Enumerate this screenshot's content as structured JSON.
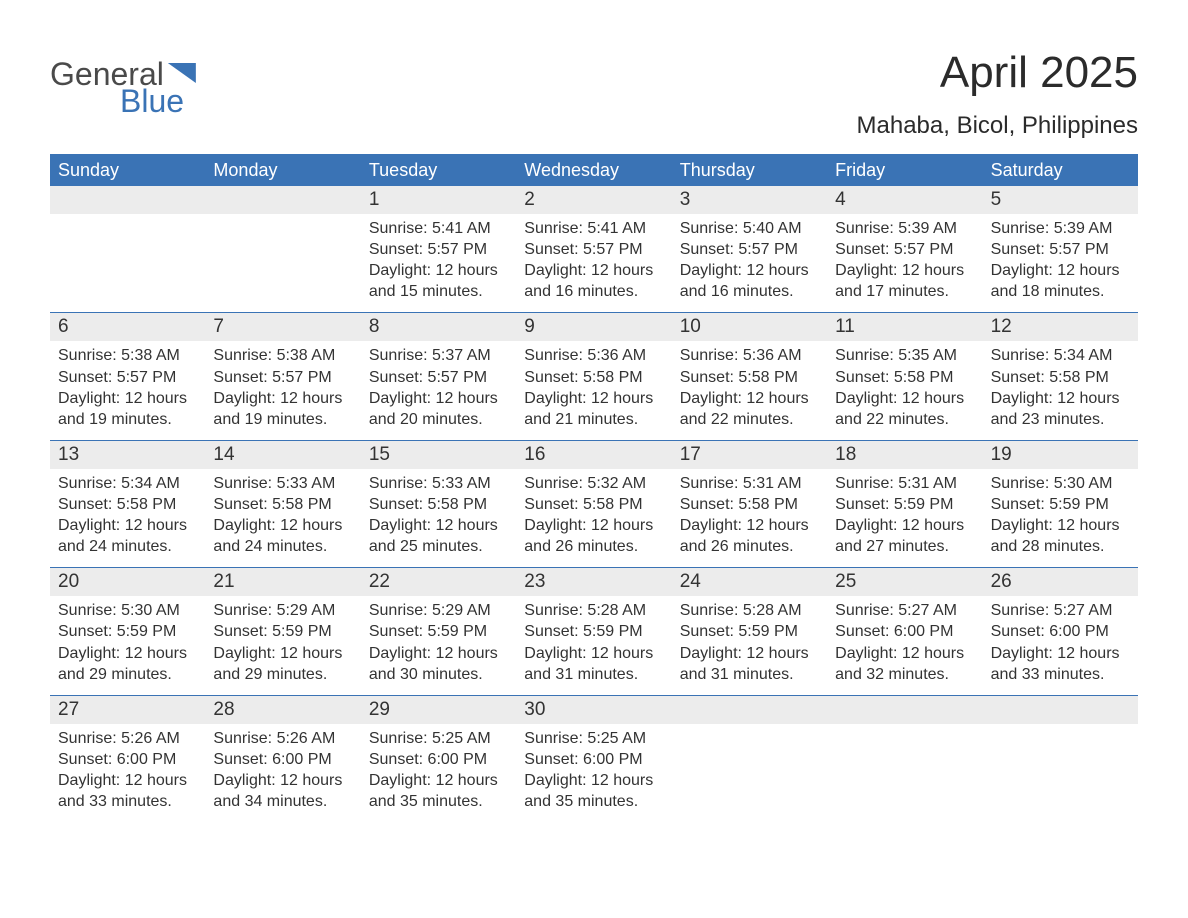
{
  "brand": {
    "word1": "General",
    "word2": "Blue"
  },
  "title": "April 2025",
  "location": "Mahaba, Bicol, Philippines",
  "header_bg": "#3a73b5",
  "header_fg": "#ffffff",
  "daynum_bg": "#ececec",
  "week_border": "#3a73b5",
  "text_color": "#333333",
  "day_names": [
    "Sunday",
    "Monday",
    "Tuesday",
    "Wednesday",
    "Thursday",
    "Friday",
    "Saturday"
  ],
  "weeks": [
    [
      {
        "n": "",
        "sunrise": "",
        "sunset": "",
        "daylight": ""
      },
      {
        "n": "",
        "sunrise": "",
        "sunset": "",
        "daylight": ""
      },
      {
        "n": "1",
        "sunrise": "Sunrise: 5:41 AM",
        "sunset": "Sunset: 5:57 PM",
        "daylight": "Daylight: 12 hours and 15 minutes."
      },
      {
        "n": "2",
        "sunrise": "Sunrise: 5:41 AM",
        "sunset": "Sunset: 5:57 PM",
        "daylight": "Daylight: 12 hours and 16 minutes."
      },
      {
        "n": "3",
        "sunrise": "Sunrise: 5:40 AM",
        "sunset": "Sunset: 5:57 PM",
        "daylight": "Daylight: 12 hours and 16 minutes."
      },
      {
        "n": "4",
        "sunrise": "Sunrise: 5:39 AM",
        "sunset": "Sunset: 5:57 PM",
        "daylight": "Daylight: 12 hours and 17 minutes."
      },
      {
        "n": "5",
        "sunrise": "Sunrise: 5:39 AM",
        "sunset": "Sunset: 5:57 PM",
        "daylight": "Daylight: 12 hours and 18 minutes."
      }
    ],
    [
      {
        "n": "6",
        "sunrise": "Sunrise: 5:38 AM",
        "sunset": "Sunset: 5:57 PM",
        "daylight": "Daylight: 12 hours and 19 minutes."
      },
      {
        "n": "7",
        "sunrise": "Sunrise: 5:38 AM",
        "sunset": "Sunset: 5:57 PM",
        "daylight": "Daylight: 12 hours and 19 minutes."
      },
      {
        "n": "8",
        "sunrise": "Sunrise: 5:37 AM",
        "sunset": "Sunset: 5:57 PM",
        "daylight": "Daylight: 12 hours and 20 minutes."
      },
      {
        "n": "9",
        "sunrise": "Sunrise: 5:36 AM",
        "sunset": "Sunset: 5:58 PM",
        "daylight": "Daylight: 12 hours and 21 minutes."
      },
      {
        "n": "10",
        "sunrise": "Sunrise: 5:36 AM",
        "sunset": "Sunset: 5:58 PM",
        "daylight": "Daylight: 12 hours and 22 minutes."
      },
      {
        "n": "11",
        "sunrise": "Sunrise: 5:35 AM",
        "sunset": "Sunset: 5:58 PM",
        "daylight": "Daylight: 12 hours and 22 minutes."
      },
      {
        "n": "12",
        "sunrise": "Sunrise: 5:34 AM",
        "sunset": "Sunset: 5:58 PM",
        "daylight": "Daylight: 12 hours and 23 minutes."
      }
    ],
    [
      {
        "n": "13",
        "sunrise": "Sunrise: 5:34 AM",
        "sunset": "Sunset: 5:58 PM",
        "daylight": "Daylight: 12 hours and 24 minutes."
      },
      {
        "n": "14",
        "sunrise": "Sunrise: 5:33 AM",
        "sunset": "Sunset: 5:58 PM",
        "daylight": "Daylight: 12 hours and 24 minutes."
      },
      {
        "n": "15",
        "sunrise": "Sunrise: 5:33 AM",
        "sunset": "Sunset: 5:58 PM",
        "daylight": "Daylight: 12 hours and 25 minutes."
      },
      {
        "n": "16",
        "sunrise": "Sunrise: 5:32 AM",
        "sunset": "Sunset: 5:58 PM",
        "daylight": "Daylight: 12 hours and 26 minutes."
      },
      {
        "n": "17",
        "sunrise": "Sunrise: 5:31 AM",
        "sunset": "Sunset: 5:58 PM",
        "daylight": "Daylight: 12 hours and 26 minutes."
      },
      {
        "n": "18",
        "sunrise": "Sunrise: 5:31 AM",
        "sunset": "Sunset: 5:59 PM",
        "daylight": "Daylight: 12 hours and 27 minutes."
      },
      {
        "n": "19",
        "sunrise": "Sunrise: 5:30 AM",
        "sunset": "Sunset: 5:59 PM",
        "daylight": "Daylight: 12 hours and 28 minutes."
      }
    ],
    [
      {
        "n": "20",
        "sunrise": "Sunrise: 5:30 AM",
        "sunset": "Sunset: 5:59 PM",
        "daylight": "Daylight: 12 hours and 29 minutes."
      },
      {
        "n": "21",
        "sunrise": "Sunrise: 5:29 AM",
        "sunset": "Sunset: 5:59 PM",
        "daylight": "Daylight: 12 hours and 29 minutes."
      },
      {
        "n": "22",
        "sunrise": "Sunrise: 5:29 AM",
        "sunset": "Sunset: 5:59 PM",
        "daylight": "Daylight: 12 hours and 30 minutes."
      },
      {
        "n": "23",
        "sunrise": "Sunrise: 5:28 AM",
        "sunset": "Sunset: 5:59 PM",
        "daylight": "Daylight: 12 hours and 31 minutes."
      },
      {
        "n": "24",
        "sunrise": "Sunrise: 5:28 AM",
        "sunset": "Sunset: 5:59 PM",
        "daylight": "Daylight: 12 hours and 31 minutes."
      },
      {
        "n": "25",
        "sunrise": "Sunrise: 5:27 AM",
        "sunset": "Sunset: 6:00 PM",
        "daylight": "Daylight: 12 hours and 32 minutes."
      },
      {
        "n": "26",
        "sunrise": "Sunrise: 5:27 AM",
        "sunset": "Sunset: 6:00 PM",
        "daylight": "Daylight: 12 hours and 33 minutes."
      }
    ],
    [
      {
        "n": "27",
        "sunrise": "Sunrise: 5:26 AM",
        "sunset": "Sunset: 6:00 PM",
        "daylight": "Daylight: 12 hours and 33 minutes."
      },
      {
        "n": "28",
        "sunrise": "Sunrise: 5:26 AM",
        "sunset": "Sunset: 6:00 PM",
        "daylight": "Daylight: 12 hours and 34 minutes."
      },
      {
        "n": "29",
        "sunrise": "Sunrise: 5:25 AM",
        "sunset": "Sunset: 6:00 PM",
        "daylight": "Daylight: 12 hours and 35 minutes."
      },
      {
        "n": "30",
        "sunrise": "Sunrise: 5:25 AM",
        "sunset": "Sunset: 6:00 PM",
        "daylight": "Daylight: 12 hours and 35 minutes."
      },
      {
        "n": "",
        "sunrise": "",
        "sunset": "",
        "daylight": ""
      },
      {
        "n": "",
        "sunrise": "",
        "sunset": "",
        "daylight": ""
      },
      {
        "n": "",
        "sunrise": "",
        "sunset": "",
        "daylight": ""
      }
    ]
  ]
}
